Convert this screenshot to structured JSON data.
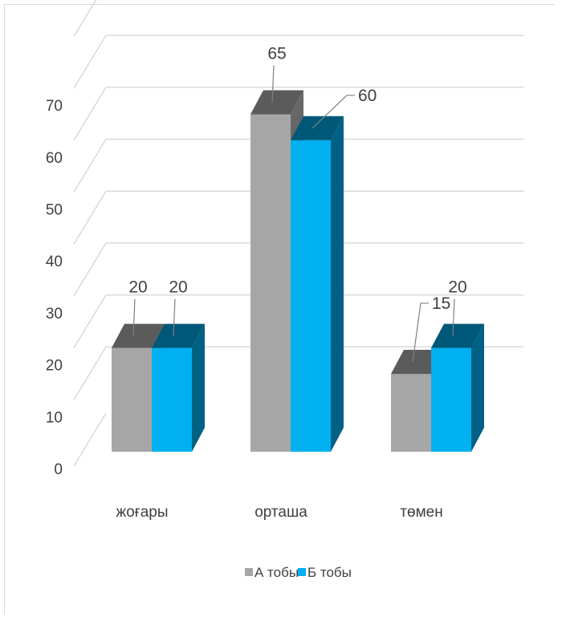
{
  "chart_data": {
    "type": "bar",
    "categories": [
      "жоғары",
      "орташа",
      "төмен"
    ],
    "series": [
      {
        "name": "А тобы",
        "values": [
          20,
          65,
          15
        ],
        "color": "#a6a6a6"
      },
      {
        "name": "Б тобы",
        "values": [
          20,
          60,
          20
        ],
        "color": "#00b0f0"
      }
    ],
    "yticks": [
      0,
      10,
      20,
      30,
      40,
      50,
      60,
      70
    ],
    "ylim": [
      0,
      70
    ],
    "grid": true,
    "three_d": true,
    "legend_position": "bottom"
  }
}
